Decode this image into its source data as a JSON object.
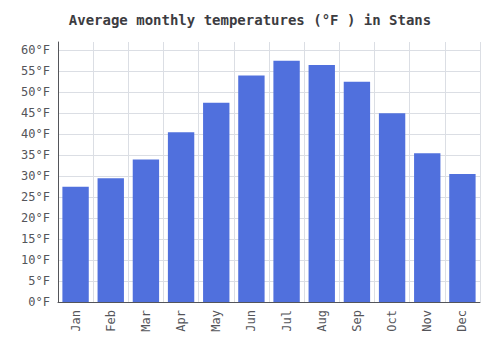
{
  "chart_data": {
    "type": "bar",
    "title": "Average monthly temperatures (°F ) in Stans",
    "categories": [
      "Jan",
      "Feb",
      "Mar",
      "Apr",
      "May",
      "Jun",
      "Jul",
      "Aug",
      "Sep",
      "Oct",
      "Nov",
      "Dec"
    ],
    "values": [
      27.5,
      29.5,
      34.0,
      40.5,
      47.5,
      54.0,
      57.5,
      56.5,
      52.5,
      45.0,
      35.5,
      30.5
    ],
    "ylim": [
      0,
      62
    ],
    "yticks": [
      {
        "value": 0,
        "label": "0°F"
      },
      {
        "value": 5,
        "label": "5°F"
      },
      {
        "value": 10,
        "label": "10°F"
      },
      {
        "value": 15,
        "label": "15°F"
      },
      {
        "value": 20,
        "label": "20°F"
      },
      {
        "value": 25,
        "label": "25°F"
      },
      {
        "value": 30,
        "label": "30°F"
      },
      {
        "value": 35,
        "label": "35°F"
      },
      {
        "value": 40,
        "label": "40°F"
      },
      {
        "value": 45,
        "label": "45°F"
      },
      {
        "value": 50,
        "label": "50°F"
      },
      {
        "value": 55,
        "label": "55°F"
      },
      {
        "value": 60,
        "label": "60°F"
      }
    ],
    "grid": true
  }
}
